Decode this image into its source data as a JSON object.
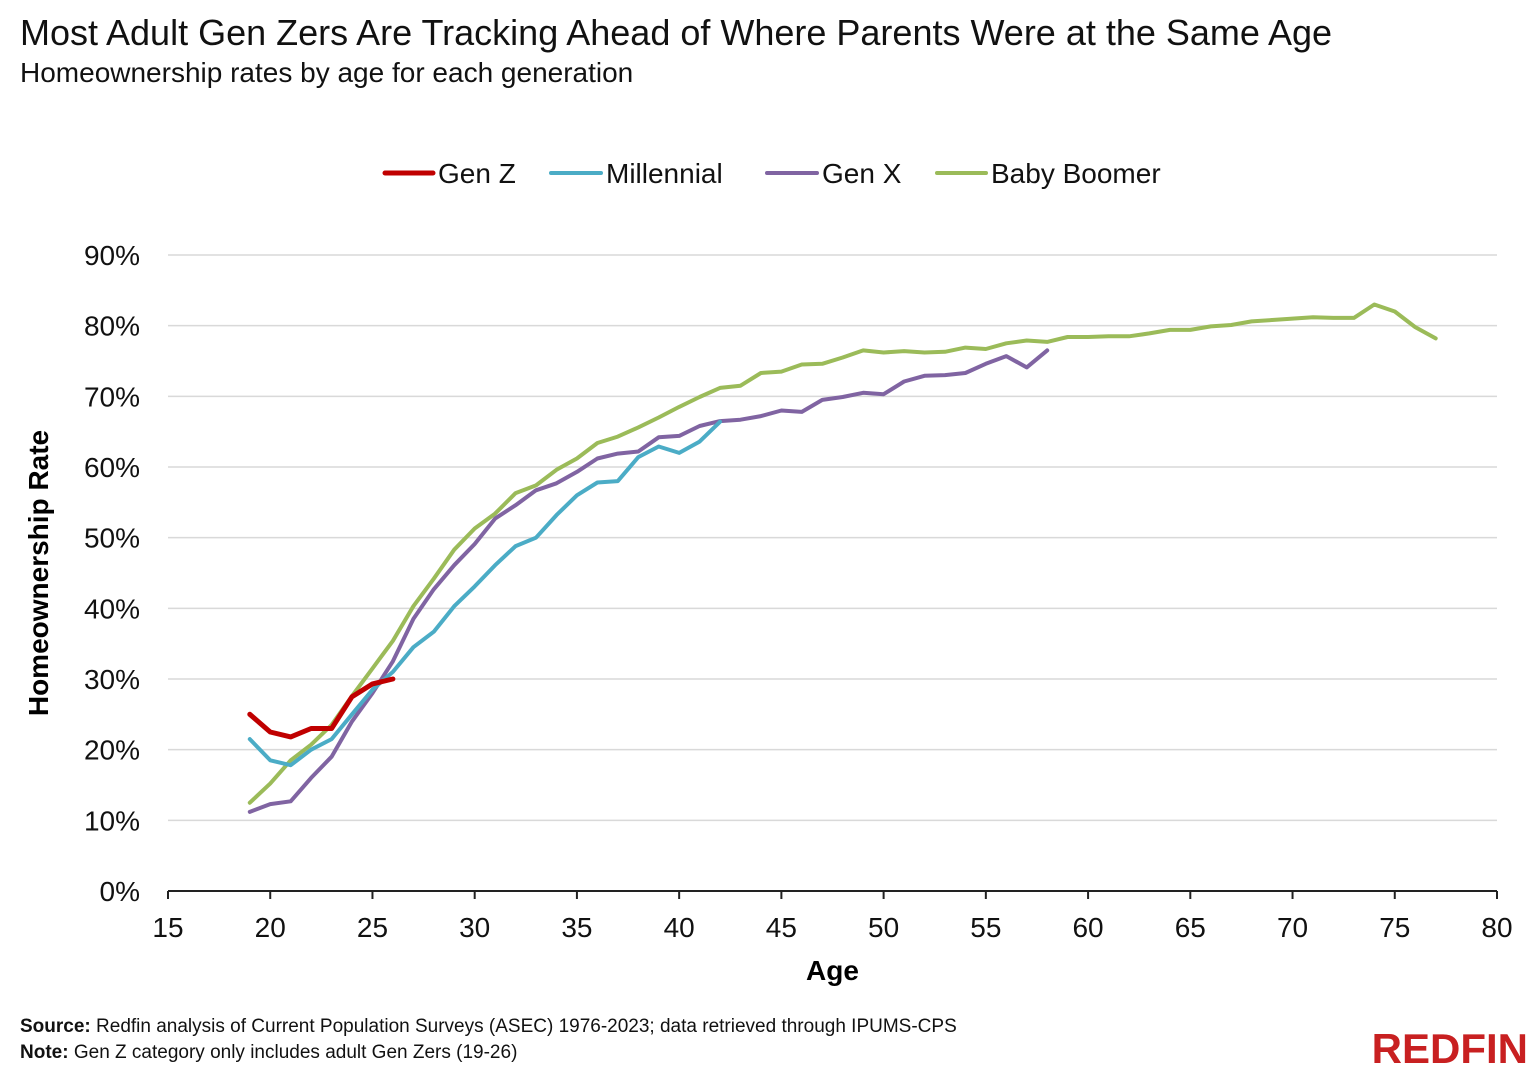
{
  "header": {
    "title": "Most Adult Gen Zers Are Tracking Ahead of Where Parents Were at the Same Age",
    "subtitle": "Homeownership rates by age for each generation"
  },
  "footer": {
    "source_label": "Source:",
    "source_text": "Redfin analysis of Current Population Surveys (ASEC) 1976-2023; data retrieved through IPUMS-CPS",
    "note_label": "Note:",
    "note_text": "Gen Z category only includes adult Gen Zers (19-26)",
    "brand": "REDFIN"
  },
  "chart_data": {
    "type": "line",
    "title": "Most Adult Gen Zers Are Tracking Ahead of Where Parents Were at the Same Age",
    "subtitle": "Homeownership rates by age for each generation",
    "xlabel": "Age",
    "ylabel": "Homeownership Rate",
    "xlim": [
      15,
      80
    ],
    "ylim": [
      0,
      90
    ],
    "x_ticks": [
      15,
      20,
      25,
      30,
      35,
      40,
      45,
      50,
      55,
      60,
      65,
      70,
      75,
      80
    ],
    "y_ticks": [
      0,
      10,
      20,
      30,
      40,
      50,
      60,
      70,
      80,
      90
    ],
    "y_tick_labels": [
      "0%",
      "10%",
      "20%",
      "30%",
      "40%",
      "50%",
      "60%",
      "70%",
      "80%",
      "90%"
    ],
    "grid": "horizontal",
    "legend_position": "top-center",
    "series": [
      {
        "name": "Gen Z",
        "color": "#c00000",
        "x": [
          19,
          20,
          21,
          22,
          23,
          24,
          25,
          26
        ],
        "y": [
          25.0,
          22.5,
          21.8,
          23.0,
          23.0,
          27.5,
          29.3,
          30.0
        ]
      },
      {
        "name": "Millennial",
        "color": "#4bacc6",
        "x": [
          19,
          20,
          21,
          22,
          23,
          24,
          25,
          26,
          27,
          28,
          29,
          30,
          31,
          32,
          33,
          34,
          35,
          36,
          37,
          38,
          39,
          40,
          41,
          42
        ],
        "y": [
          21.5,
          18.5,
          17.8,
          20.0,
          21.5,
          25.0,
          28.5,
          31.0,
          34.5,
          36.7,
          40.3,
          43.1,
          46.1,
          48.8,
          50.0,
          53.2,
          56.0,
          57.8,
          58.0,
          61.4,
          62.9,
          62.0,
          63.6,
          66.4
        ]
      },
      {
        "name": "Gen X",
        "color": "#8064a2",
        "x": [
          19,
          20,
          21,
          22,
          23,
          24,
          25,
          26,
          27,
          28,
          29,
          30,
          31,
          32,
          33,
          34,
          35,
          36,
          37,
          38,
          39,
          40,
          41,
          42,
          43,
          44,
          45,
          46,
          47,
          48,
          49,
          50,
          51,
          52,
          53,
          54,
          55,
          56,
          57,
          58
        ],
        "y": [
          11.2,
          12.3,
          12.7,
          16.0,
          19.0,
          24.0,
          28.0,
          32.5,
          38.5,
          42.7,
          46.1,
          49.1,
          52.7,
          54.6,
          56.7,
          57.7,
          59.3,
          61.2,
          61.9,
          62.2,
          64.2,
          64.4,
          65.8,
          66.5,
          66.7,
          67.2,
          68.0,
          67.8,
          69.5,
          69.9,
          70.5,
          70.3,
          72.1,
          72.9,
          73.0,
          73.3,
          74.6,
          75.7,
          74.1,
          76.5
        ]
      },
      {
        "name": "Baby Boomer",
        "color": "#9bbb59",
        "x": [
          19,
          20,
          21,
          22,
          23,
          24,
          25,
          26,
          27,
          28,
          29,
          30,
          31,
          32,
          33,
          34,
          35,
          36,
          37,
          38,
          39,
          40,
          41,
          42,
          43,
          44,
          45,
          46,
          47,
          48,
          49,
          50,
          51,
          52,
          53,
          54,
          55,
          56,
          57,
          58,
          59,
          60,
          61,
          62,
          63,
          64,
          65,
          66,
          67,
          68,
          69,
          70,
          71,
          72,
          73,
          74,
          75,
          76,
          77
        ],
        "y": [
          12.5,
          15.2,
          18.5,
          20.7,
          23.5,
          27.6,
          31.5,
          35.4,
          40.3,
          44.2,
          48.3,
          51.3,
          53.4,
          56.3,
          57.4,
          59.6,
          61.2,
          63.4,
          64.3,
          65.6,
          67.0,
          68.5,
          69.9,
          71.2,
          71.5,
          73.3,
          73.5,
          74.5,
          74.6,
          75.5,
          76.5,
          76.2,
          76.4,
          76.2,
          76.3,
          76.9,
          76.7,
          77.5,
          77.9,
          77.7,
          78.4,
          78.4,
          78.5,
          78.5,
          78.9,
          79.4,
          79.4,
          79.9,
          80.1,
          80.6,
          80.8,
          81.0,
          81.2,
          81.1,
          81.1,
          83.0,
          82.0,
          79.8,
          78.2
        ]
      }
    ]
  }
}
